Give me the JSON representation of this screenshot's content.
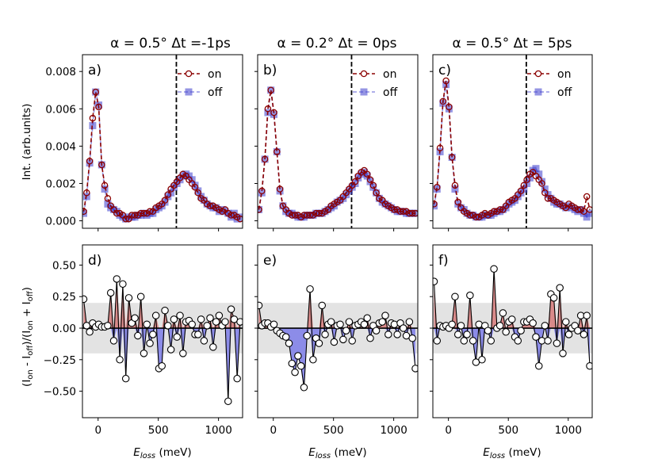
{
  "figure": {
    "ylabel_top": "Int. (arb.units)",
    "ylabel_bottom": "(I_on - I_off)/(I_on + I_off)",
    "xlabel_main": "E",
    "xlabel_sub": "loss",
    "xlabel_unit": "(meV)",
    "colors": {
      "on": "#8b0000",
      "off": "#3d3dcc",
      "pos_fill": "#d98a8a",
      "neg_fill": "#8c8ce8",
      "band": "#e3e3e3"
    }
  },
  "chart_data": [
    {
      "type": "line",
      "panel": "a)",
      "title": "α = 0.5° Δt =-1ps",
      "xlim": [
        -130,
        1200
      ],
      "ylim": [
        -0.0004,
        0.0089
      ],
      "xticks": [
        0,
        500,
        1000
      ],
      "yticks": [
        "0.000",
        "0.002",
        "0.004",
        "0.006",
        "0.008"
      ],
      "vline_x": 650,
      "legend": [
        "on",
        "off"
      ],
      "x": [
        -120,
        -95,
        -70,
        -45,
        -20,
        5,
        30,
        55,
        80,
        105,
        130,
        155,
        180,
        205,
        230,
        255,
        280,
        305,
        330,
        355,
        380,
        405,
        430,
        455,
        480,
        505,
        530,
        555,
        580,
        605,
        630,
        655,
        680,
        705,
        730,
        755,
        780,
        805,
        830,
        855,
        880,
        905,
        930,
        955,
        980,
        1005,
        1030,
        1055,
        1080,
        1105,
        1130,
        1155,
        1180
      ],
      "on": [
        0.0005,
        0.0015,
        0.0032,
        0.0055,
        0.0069,
        0.0061,
        0.003,
        0.0019,
        0.0012,
        0.0008,
        0.0006,
        0.0004,
        0.0004,
        0.0003,
        0.0001,
        0.0001,
        0.0003,
        0.0003,
        0.0003,
        0.0004,
        0.0004,
        0.0004,
        0.0005,
        0.0005,
        0.0007,
        0.0008,
        0.0009,
        0.0011,
        0.0014,
        0.0017,
        0.0019,
        0.0021,
        0.0023,
        0.0025,
        0.0024,
        0.0022,
        0.002,
        0.0018,
        0.0015,
        0.0012,
        0.0011,
        0.0009,
        0.0008,
        0.0008,
        0.0007,
        0.0006,
        0.0005,
        0.0006,
        0.0004,
        0.0003,
        0.0003,
        0.0002,
        0.0001
      ],
      "off": [
        0.0004,
        0.0013,
        0.0031,
        0.0051,
        0.0069,
        0.0062,
        0.003,
        0.0017,
        0.0009,
        0.0007,
        0.0006,
        0.0005,
        0.0003,
        0.0002,
        0.0001,
        0.0002,
        0.0002,
        0.0002,
        0.0003,
        0.0003,
        0.0004,
        0.0003,
        0.0004,
        0.0004,
        0.0006,
        0.0007,
        0.0008,
        0.001,
        0.0013,
        0.0015,
        0.0018,
        0.002,
        0.0022,
        0.0024,
        0.0025,
        0.0024,
        0.0022,
        0.0019,
        0.0016,
        0.0013,
        0.0011,
        0.0009,
        0.0008,
        0.0007,
        0.0007,
        0.0005,
        0.0006,
        0.0005,
        0.0004,
        0.0002,
        0.0004,
        0.0001,
        0.0002
      ]
    },
    {
      "type": "line",
      "panel": "b)",
      "title": "α = 0.2° Δt = 0ps",
      "xlim": [
        -130,
        1200
      ],
      "ylim": [
        -0.0004,
        0.0089
      ],
      "xticks": [
        0,
        500,
        1000
      ],
      "vline_x": 650,
      "legend": [
        "on",
        "off"
      ],
      "x": [
        -120,
        -95,
        -70,
        -45,
        -20,
        5,
        30,
        55,
        80,
        105,
        130,
        155,
        180,
        205,
        230,
        255,
        280,
        305,
        330,
        355,
        380,
        405,
        430,
        455,
        480,
        505,
        530,
        555,
        580,
        605,
        630,
        655,
        680,
        705,
        730,
        755,
        780,
        805,
        830,
        855,
        880,
        905,
        930,
        955,
        980,
        1005,
        1030,
        1055,
        1080,
        1105,
        1130,
        1155,
        1180
      ],
      "on": [
        0.0006,
        0.0016,
        0.0033,
        0.006,
        0.007,
        0.0058,
        0.0037,
        0.0017,
        0.0008,
        0.0006,
        0.0004,
        0.0003,
        0.0003,
        0.0003,
        0.0002,
        0.0003,
        0.0003,
        0.0003,
        0.0003,
        0.0004,
        0.0004,
        0.0004,
        0.0005,
        0.0006,
        0.0008,
        0.0009,
        0.001,
        0.0011,
        0.0013,
        0.0015,
        0.0017,
        0.0019,
        0.0021,
        0.0024,
        0.0026,
        0.0027,
        0.0025,
        0.0022,
        0.0019,
        0.0015,
        0.0012,
        0.0011,
        0.0009,
        0.0008,
        0.0007,
        0.0006,
        0.0006,
        0.0005,
        0.0005,
        0.0005,
        0.0004,
        0.0004,
        0.0004
      ],
      "off": [
        0.0006,
        0.0015,
        0.0033,
        0.0058,
        0.007,
        0.0057,
        0.0037,
        0.0016,
        0.0008,
        0.0005,
        0.0004,
        0.0004,
        0.0003,
        0.0002,
        0.0002,
        0.0002,
        0.0003,
        0.0003,
        0.0003,
        0.0004,
        0.0004,
        0.0004,
        0.0005,
        0.0006,
        0.0007,
        0.0008,
        0.001,
        0.0011,
        0.0012,
        0.0014,
        0.0016,
        0.0018,
        0.002,
        0.0023,
        0.0025,
        0.0026,
        0.0024,
        0.0021,
        0.0018,
        0.0015,
        0.0012,
        0.001,
        0.0009,
        0.0008,
        0.0007,
        0.0006,
        0.0005,
        0.0005,
        0.0005,
        0.0004,
        0.0004,
        0.0004,
        0.0004
      ]
    },
    {
      "type": "line",
      "panel": "c)",
      "title": "α = 0.5° Δt = 5ps",
      "xlim": [
        -130,
        1200
      ],
      "ylim": [
        -0.0004,
        0.0089
      ],
      "xticks": [
        0,
        500,
        1000
      ],
      "vline_x": 650,
      "legend": [
        "on",
        "off"
      ],
      "x": [
        -120,
        -95,
        -70,
        -45,
        -20,
        5,
        30,
        55,
        80,
        105,
        130,
        155,
        180,
        205,
        230,
        255,
        280,
        305,
        330,
        355,
        380,
        405,
        430,
        455,
        480,
        505,
        530,
        555,
        580,
        605,
        630,
        655,
        680,
        705,
        730,
        755,
        780,
        805,
        830,
        855,
        880,
        905,
        930,
        955,
        980,
        1005,
        1030,
        1055,
        1080,
        1105,
        1130,
        1155,
        1180
      ],
      "on": [
        0.0009,
        0.0018,
        0.0039,
        0.0064,
        0.0075,
        0.0061,
        0.0034,
        0.0019,
        0.001,
        0.0007,
        0.0005,
        0.0004,
        0.0003,
        0.0003,
        0.0002,
        0.0002,
        0.0003,
        0.0004,
        0.0003,
        0.0004,
        0.0005,
        0.0005,
        0.0006,
        0.0006,
        0.0008,
        0.001,
        0.0011,
        0.0012,
        0.0014,
        0.0016,
        0.0019,
        0.0022,
        0.0025,
        0.0026,
        0.0024,
        0.0022,
        0.002,
        0.0015,
        0.0012,
        0.0012,
        0.0011,
        0.001,
        0.0009,
        0.0008,
        0.0007,
        0.0009,
        0.0008,
        0.0007,
        0.0006,
        0.0006,
        0.0005,
        0.0013,
        0.0006
      ],
      "off": [
        0.0008,
        0.0017,
        0.0037,
        0.0063,
        0.0073,
        0.006,
        0.0034,
        0.0017,
        0.0009,
        0.0007,
        0.0006,
        0.0004,
        0.0003,
        0.0003,
        0.0002,
        0.0002,
        0.0002,
        0.0003,
        0.0003,
        0.0003,
        0.0004,
        0.0005,
        0.0005,
        0.0006,
        0.0007,
        0.0009,
        0.001,
        0.0011,
        0.0013,
        0.0015,
        0.0017,
        0.002,
        0.0023,
        0.0027,
        0.0028,
        0.0025,
        0.0021,
        0.0017,
        0.0014,
        0.0012,
        0.001,
        0.0009,
        0.0009,
        0.0008,
        0.0007,
        0.0008,
        0.0007,
        0.0006,
        0.0005,
        0.0006,
        0.0004,
        0.0002,
        0.0004
      ]
    },
    {
      "type": "line",
      "panel": "d)",
      "xlim": [
        -130,
        1200
      ],
      "ylim": [
        -0.71,
        0.66
      ],
      "xticks": [
        0,
        500,
        1000
      ],
      "yticks": [
        "−0.50",
        "−0.25",
        "0.00",
        "0.25",
        "0.50"
      ],
      "band": [
        -0.2,
        0.2
      ],
      "x": [
        -120,
        -95,
        -70,
        -45,
        -20,
        5,
        30,
        55,
        80,
        105,
        130,
        155,
        180,
        205,
        230,
        255,
        280,
        305,
        330,
        355,
        380,
        405,
        430,
        455,
        480,
        505,
        530,
        555,
        580,
        605,
        630,
        655,
        680,
        705,
        730,
        755,
        780,
        805,
        830,
        855,
        880,
        905,
        930,
        955,
        980,
        1005,
        1030,
        1055,
        1080,
        1105,
        1130,
        1155,
        1180
      ],
      "y": [
        0.23,
        0.02,
        -0.03,
        0.04,
        0.01,
        0.03,
        0.01,
        0.01,
        0.02,
        0.28,
        -0.1,
        0.39,
        -0.25,
        0.35,
        -0.4,
        0.24,
        0.04,
        0.08,
        -0.06,
        0.25,
        -0.2,
        0.03,
        -0.12,
        -0.05,
        0.1,
        -0.32,
        -0.3,
        0.14,
        0.02,
        -0.17,
        0.07,
        -0.07,
        0.1,
        -0.2,
        0.05,
        0.06,
        0.03,
        -0.05,
        -0.05,
        0.07,
        -0.1,
        0.02,
        0.08,
        -0.15,
        0.05,
        0.1,
        0.02,
        0.05,
        -0.58,
        0.15,
        0.07,
        -0.4,
        0.05
      ]
    },
    {
      "type": "line",
      "panel": "e)",
      "xlim": [
        -130,
        1200
      ],
      "ylim": [
        -0.71,
        0.66
      ],
      "xticks": [
        0,
        500,
        1000
      ],
      "band": [
        -0.2,
        0.2
      ],
      "x": [
        -120,
        -95,
        -70,
        -45,
        -20,
        5,
        30,
        55,
        80,
        105,
        130,
        155,
        180,
        205,
        230,
        255,
        280,
        305,
        330,
        355,
        380,
        405,
        430,
        455,
        480,
        505,
        530,
        555,
        580,
        605,
        630,
        655,
        680,
        705,
        730,
        755,
        780,
        805,
        830,
        855,
        880,
        905,
        930,
        955,
        980,
        1005,
        1030,
        1055,
        1080,
        1105,
        1130,
        1155,
        1180
      ],
      "y": [
        0.18,
        0.02,
        0.04,
        0.04,
        0.01,
        0.03,
        -0.02,
        -0.04,
        -0.06,
        -0.07,
        -0.12,
        -0.28,
        -0.35,
        -0.22,
        -0.3,
        -0.47,
        -0.06,
        0.31,
        -0.25,
        -0.08,
        -0.12,
        0.18,
        -0.05,
        0.03,
        0.05,
        -0.11,
        0.02,
        0.03,
        -0.09,
        -0.02,
        0.05,
        -0.1,
        0.02,
        0.03,
        0.05,
        0.03,
        0.08,
        -0.08,
        0.02,
        -0.02,
        0.04,
        0.05,
        0.1,
        -0.05,
        0.04,
        0.03,
        -0.05,
        0.04,
        0.0,
        -0.06,
        0.05,
        -0.08,
        -0.32
      ]
    },
    {
      "type": "line",
      "panel": "f)",
      "xlim": [
        -130,
        1200
      ],
      "ylim": [
        -0.71,
        0.66
      ],
      "xticks": [
        0,
        500,
        1000
      ],
      "band": [
        -0.2,
        0.2
      ],
      "x": [
        -120,
        -95,
        -70,
        -45,
        -20,
        5,
        30,
        55,
        80,
        105,
        130,
        155,
        180,
        205,
        230,
        255,
        280,
        305,
        330,
        355,
        380,
        405,
        430,
        455,
        480,
        505,
        530,
        555,
        580,
        605,
        630,
        655,
        680,
        705,
        730,
        755,
        780,
        805,
        830,
        855,
        880,
        905,
        930,
        955,
        980,
        1005,
        1030,
        1055,
        1080,
        1105,
        1130,
        1155,
        1180
      ],
      "y": [
        0.37,
        -0.1,
        0.02,
        0.01,
        0.02,
        0.0,
        0.03,
        0.25,
        -0.05,
        0.02,
        -0.1,
        -0.05,
        0.26,
        -0.1,
        -0.27,
        0.03,
        -0.25,
        0.02,
        -0.02,
        -0.1,
        0.47,
        0.0,
        0.02,
        0.12,
        -0.03,
        0.05,
        0.07,
        -0.07,
        -0.1,
        -0.02,
        0.05,
        0.05,
        0.07,
        0.04,
        -0.07,
        -0.3,
        -0.1,
        0.02,
        -0.1,
        0.27,
        0.24,
        -0.12,
        0.32,
        -0.2,
        0.05,
        -0.05,
        0.0,
        0.02,
        -0.02,
        0.1,
        -0.05,
        0.1,
        -0.3
      ]
    }
  ]
}
